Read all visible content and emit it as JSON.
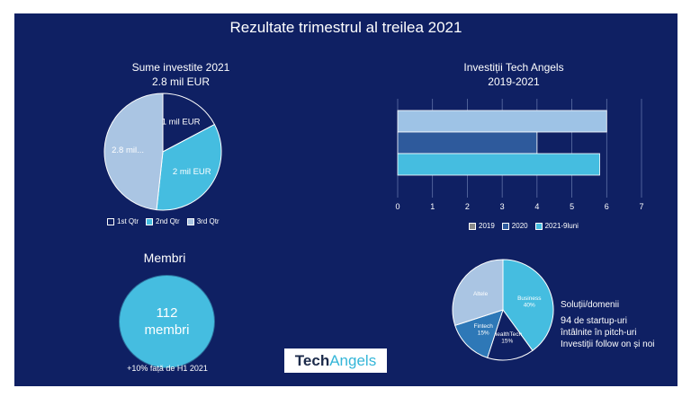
{
  "slide": {
    "title": "Rezultate trimestrul al treilea 2021"
  },
  "logo": {
    "tech": "Tech",
    "angels": "Angels"
  },
  "membri": {
    "label": "Membri",
    "count": "112",
    "unit": "membri",
    "note": "+10% față de H1 2021"
  },
  "solutii": {
    "heading": "Soluții/domenii",
    "count": "94",
    "line1_rest": "de startup-uri",
    "line2": "întâlnite în pitch-uri",
    "line3": "Investiții follow on și noi"
  },
  "colors": {
    "background": "#0f2063",
    "q1": "#0f2063",
    "q2": "#45bde0",
    "q3": "#aac5e3",
    "y2019": "#9ec3e6",
    "y2020": "#2e5a9c",
    "y2021": "#45bde0",
    "grid": "#6b7cb0"
  },
  "chart_data": [
    {
      "type": "pie",
      "title": "Sume investite 2021",
      "subtitle": "2.8 mil EUR",
      "categories": [
        "1st Qtr",
        "2nd Qtr",
        "3rd Qtr"
      ],
      "values": [
        1,
        2,
        2.8
      ],
      "labels": [
        "1 mil EUR",
        "2 mil EUR",
        "2.8 mil..."
      ],
      "colors": [
        "#0f2063",
        "#45bde0",
        "#aac5e3"
      ],
      "legend": "bottom"
    },
    {
      "type": "bar",
      "orientation": "horizontal",
      "title": "Investiții Tech Angels",
      "subtitle": "2019-2021",
      "series": [
        {
          "name": "2019",
          "values": [
            6
          ]
        },
        {
          "name": "2020",
          "values": [
            4
          ]
        },
        {
          "name": "2021-9luni",
          "values": [
            5.8
          ]
        }
      ],
      "xlim": [
        0,
        7
      ],
      "xticks": [
        0,
        1,
        2,
        3,
        4,
        5,
        6,
        7
      ],
      "grid": true,
      "legend": "bottom"
    },
    {
      "type": "pie",
      "categories": [
        "Business",
        "HealthTech",
        "Fintech",
        "Altele"
      ],
      "values": [
        40,
        15,
        15,
        30
      ],
      "labels": [
        "Business\n40%",
        "HealthTech\n15%",
        "Fintech\n15%",
        "Altele"
      ],
      "colors": [
        "#45bde0",
        "#0f2063",
        "#2e78b7",
        "#aac5e3"
      ]
    }
  ]
}
